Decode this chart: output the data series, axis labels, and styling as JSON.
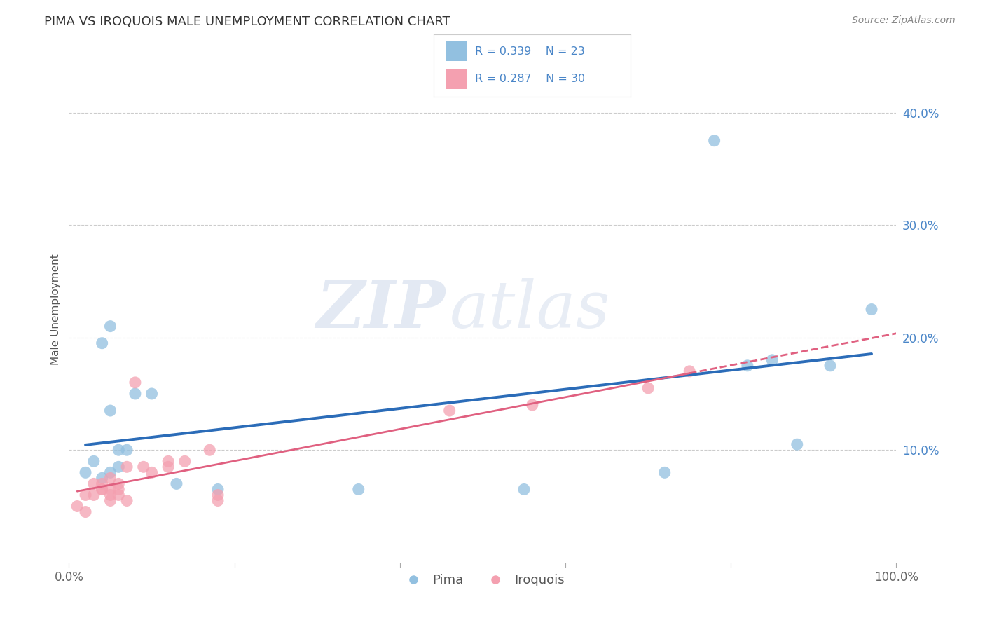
{
  "title": "PIMA VS IROQUOIS MALE UNEMPLOYMENT CORRELATION CHART",
  "source": "Source: ZipAtlas.com",
  "ylabel": "Male Unemployment",
  "xlim": [
    0.0,
    1.0
  ],
  "ylim": [
    0.0,
    0.45
  ],
  "yticks": [
    0.0,
    0.1,
    0.2,
    0.3,
    0.4
  ],
  "ytick_labels": [
    "",
    "10.0%",
    "20.0%",
    "30.0%",
    "40.0%"
  ],
  "xticks": [
    0.0,
    0.2,
    0.4,
    0.6,
    0.8,
    1.0
  ],
  "xtick_labels": [
    "0.0%",
    "",
    "",
    "",
    "",
    "100.0%"
  ],
  "pima_color": "#92c0e0",
  "iroquois_color": "#f4a0b0",
  "pima_line_color": "#2b6cb8",
  "iroquois_line_color": "#e06080",
  "background_color": "#ffffff",
  "watermark_zip": "ZIP",
  "watermark_atlas": "atlas",
  "legend_text_color": "#4a86c8",
  "legend_R_pima": "R = 0.339",
  "legend_N_pima": "N = 23",
  "legend_R_iroquois": "R = 0.287",
  "legend_N_iroquois": "N = 30",
  "pima_x": [
    0.02,
    0.03,
    0.04,
    0.04,
    0.05,
    0.05,
    0.05,
    0.06,
    0.06,
    0.07,
    0.08,
    0.1,
    0.13,
    0.18,
    0.35,
    0.55,
    0.72,
    0.78,
    0.82,
    0.85,
    0.88,
    0.92,
    0.97
  ],
  "pima_y": [
    0.08,
    0.09,
    0.075,
    0.195,
    0.21,
    0.08,
    0.135,
    0.085,
    0.1,
    0.1,
    0.15,
    0.15,
    0.07,
    0.065,
    0.065,
    0.065,
    0.08,
    0.375,
    0.175,
    0.18,
    0.105,
    0.175,
    0.225
  ],
  "iroquois_x": [
    0.01,
    0.02,
    0.02,
    0.03,
    0.03,
    0.04,
    0.04,
    0.04,
    0.05,
    0.05,
    0.05,
    0.05,
    0.06,
    0.06,
    0.06,
    0.07,
    0.07,
    0.08,
    0.09,
    0.1,
    0.12,
    0.12,
    0.14,
    0.17,
    0.18,
    0.18,
    0.46,
    0.56,
    0.7,
    0.75
  ],
  "iroquois_y": [
    0.05,
    0.06,
    0.045,
    0.07,
    0.06,
    0.065,
    0.065,
    0.07,
    0.075,
    0.065,
    0.055,
    0.06,
    0.07,
    0.06,
    0.065,
    0.085,
    0.055,
    0.16,
    0.085,
    0.08,
    0.09,
    0.085,
    0.09,
    0.1,
    0.06,
    0.055,
    0.135,
    0.14,
    0.155,
    0.17
  ]
}
